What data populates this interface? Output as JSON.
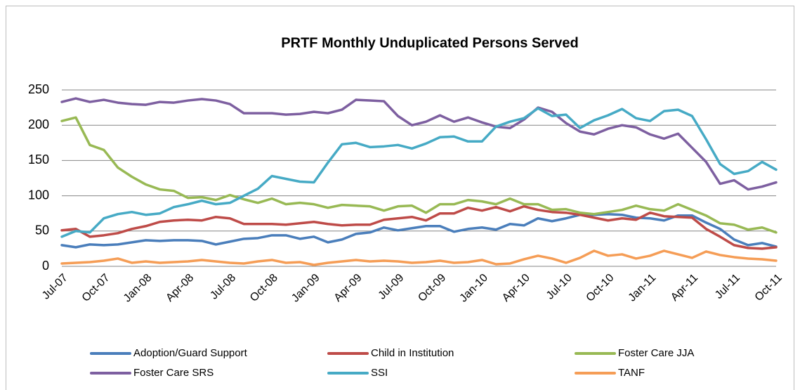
{
  "chart_data": {
    "type": "line",
    "title": "PRTF Monthly Unduplicated Persons Served",
    "categories": [
      "Jul-07",
      null,
      null,
      "Oct-07",
      null,
      null,
      "Jan-08",
      null,
      null,
      "Apr-08",
      null,
      null,
      "Jul-08",
      null,
      null,
      "Oct-08",
      null,
      null,
      "Jan-09",
      null,
      null,
      "Apr-09",
      null,
      null,
      "Jul-09",
      null,
      null,
      "Oct-09",
      null,
      null,
      "Jan-10",
      null,
      null,
      "Apr-10",
      null,
      null,
      "Jul-10",
      null,
      null,
      "Oct-10",
      null,
      null,
      "Jan-11",
      null,
      null,
      "Apr-11",
      null,
      null,
      "Jul-11",
      null,
      null,
      "Oct-11"
    ],
    "series": [
      {
        "name": "Adoption/Guard Support",
        "color": "#4a7ebb",
        "values": [
          30,
          27,
          31,
          30,
          31,
          34,
          37,
          36,
          37,
          37,
          36,
          31,
          35,
          39,
          40,
          44,
          44,
          39,
          42,
          34,
          38,
          46,
          48,
          55,
          51,
          54,
          57,
          57,
          49,
          53,
          55,
          52,
          60,
          58,
          68,
          64,
          68,
          73,
          73,
          74,
          73,
          69,
          68,
          65,
          72,
          72,
          62,
          53,
          38,
          30,
          33,
          28
        ]
      },
      {
        "name": "Child in Institution",
        "color": "#be4b48",
        "values": [
          51,
          53,
          42,
          44,
          47,
          53,
          57,
          63,
          65,
          66,
          65,
          70,
          68,
          60,
          60,
          60,
          59,
          61,
          63,
          60,
          58,
          59,
          59,
          66,
          68,
          70,
          65,
          75,
          75,
          83,
          79,
          84,
          78,
          85,
          80,
          77,
          76,
          73,
          69,
          65,
          68,
          66,
          76,
          71,
          70,
          69,
          53,
          42,
          30,
          26,
          25,
          27
        ]
      },
      {
        "name": "Foster Care JJA",
        "color": "#98b954",
        "values": [
          206,
          211,
          172,
          165,
          140,
          127,
          116,
          109,
          107,
          97,
          98,
          94,
          101,
          95,
          90,
          96,
          88,
          90,
          88,
          83,
          87,
          86,
          85,
          79,
          85,
          86,
          76,
          88,
          88,
          94,
          92,
          88,
          96,
          88,
          88,
          80,
          81,
          76,
          74,
          77,
          80,
          86,
          81,
          79,
          88,
          80,
          72,
          61,
          59,
          52,
          55,
          48
        ]
      },
      {
        "name": "Foster Care SRS",
        "color": "#7d5fa0",
        "values": [
          233,
          238,
          233,
          236,
          232,
          230,
          229,
          233,
          232,
          235,
          237,
          235,
          230,
          217,
          217,
          217,
          215,
          216,
          219,
          217,
          222,
          236,
          235,
          234,
          213,
          200,
          205,
          214,
          205,
          211,
          204,
          198,
          196,
          208,
          225,
          219,
          203,
          191,
          187,
          195,
          200,
          197,
          187,
          181,
          188,
          168,
          148,
          117,
          122,
          109,
          113,
          119
        ]
      },
      {
        "name": "SSI",
        "color": "#46aac5",
        "values": [
          42,
          50,
          48,
          68,
          74,
          77,
          73,
          75,
          84,
          88,
          93,
          88,
          90,
          100,
          110,
          128,
          124,
          120,
          119,
          147,
          173,
          175,
          169,
          170,
          172,
          167,
          174,
          183,
          184,
          177,
          177,
          198,
          205,
          210,
          224,
          213,
          215,
          196,
          207,
          214,
          223,
          210,
          206,
          220,
          222,
          213,
          180,
          145,
          131,
          135,
          148,
          137
        ]
      },
      {
        "name": "TANF",
        "color": "#f59d56",
        "values": [
          4,
          5,
          6,
          8,
          11,
          5,
          7,
          5,
          6,
          7,
          9,
          7,
          5,
          4,
          7,
          9,
          5,
          6,
          2,
          5,
          7,
          9,
          7,
          8,
          7,
          5,
          6,
          8,
          5,
          6,
          9,
          3,
          4,
          10,
          15,
          11,
          5,
          12,
          22,
          15,
          17,
          11,
          15,
          22,
          17,
          12,
          21,
          16,
          13,
          11,
          10,
          8
        ]
      }
    ],
    "ylim": [
      0,
      250
    ],
    "yticks": [
      0,
      50,
      100,
      150,
      200,
      250
    ],
    "grid": true,
    "legend": "bottom"
  }
}
